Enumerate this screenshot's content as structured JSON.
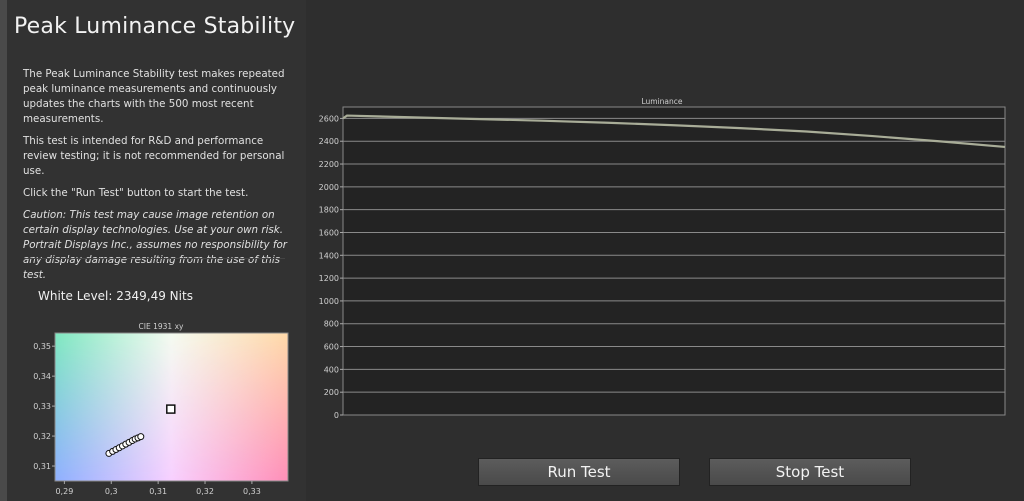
{
  "page": {
    "title": "Peak Luminance Stability",
    "paragraphs": [
      "The Peak Luminance Stability test makes repeated peak luminance measurements and continuously updates the charts with the 500 most recent measurements.",
      "This test is intended for R&D and performance review testing; it is not recommended for personal use.",
      "Click the \"Run Test\" button to start the test."
    ],
    "caution": "Caution: This test may cause image retention on certain display technologies. Use at your own risk. Portrait Displays Inc., assumes no responsibility for any display damage resulting from the use of this test.",
    "white_level": "White Level: 2349,49 Nits"
  },
  "buttons": {
    "run": "Run Test",
    "stop": "Stop Test"
  },
  "chart_data": [
    {
      "type": "line",
      "title": "Luminance",
      "xlabel": "",
      "ylabel": "",
      "ylim": [
        0,
        2700
      ],
      "yticks": [
        "0",
        "200",
        "400",
        "600",
        "800",
        "1000",
        "1200",
        "1400",
        "1600",
        "1800",
        "2000",
        "2200",
        "2400",
        "2600"
      ],
      "grid": true,
      "line_color": "#a9ad98",
      "x": [
        0,
        3,
        50,
        100,
        150,
        200,
        250,
        300,
        350,
        400,
        450,
        500
      ],
      "values": [
        2600,
        2625,
        2610,
        2595,
        2580,
        2562,
        2540,
        2515,
        2485,
        2445,
        2400,
        2350
      ]
    },
    {
      "type": "scatter",
      "title": "CIE 1931 xy",
      "xlim": [
        0.288,
        0.3377
      ],
      "ylim": [
        0.305,
        0.3544
      ],
      "xticks": [
        "0,29",
        "0,3",
        "0,31",
        "0,32",
        "0,33"
      ],
      "xtick_values": [
        0.29,
        0.3,
        0.31,
        0.32,
        0.33
      ],
      "yticks": [
        "0,31",
        "0,32",
        "0,33",
        "0,34",
        "0,35"
      ],
      "ytick_values": [
        0.31,
        0.32,
        0.33,
        0.34,
        0.35
      ],
      "target": {
        "x": 0.3127,
        "y": 0.329
      },
      "points": {
        "x": [
          0.2995,
          0.3003,
          0.301,
          0.3017,
          0.3024,
          0.3031,
          0.3038,
          0.3045,
          0.3051,
          0.3057,
          0.3063
        ],
        "y": [
          0.3142,
          0.3149,
          0.3155,
          0.3161,
          0.3167,
          0.3173,
          0.3179,
          0.3185,
          0.319,
          0.3194,
          0.3198
        ]
      }
    }
  ]
}
